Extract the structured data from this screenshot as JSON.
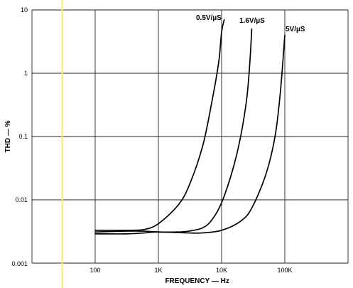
{
  "chart_data": {
    "type": "line",
    "xlabel": "FREQUENCY — Hz",
    "ylabel": "THD — %",
    "x_scale": "log",
    "y_scale": "log",
    "xlim": [
      10,
      1000000
    ],
    "ylim": [
      0.001,
      10
    ],
    "grid": true,
    "x_ticks": [
      {
        "value": 100,
        "label": "100"
      },
      {
        "value": 1000,
        "label": "1K"
      },
      {
        "value": 10000,
        "label": "10K"
      },
      {
        "value": 100000,
        "label": "100K"
      }
    ],
    "y_ticks": [
      {
        "value": 10,
        "label": "10"
      },
      {
        "value": 1,
        "label": "1"
      },
      {
        "value": 0.1,
        "label": "0.1"
      },
      {
        "value": 0.01,
        "label": "0.01"
      },
      {
        "value": 0.001,
        "label": "0.001"
      }
    ],
    "marker_line": {
      "x": 30,
      "color": "#f2ee6a"
    },
    "series": [
      {
        "name": "0.5V/µS",
        "x": [
          100,
          300,
          600,
          1000,
          2000,
          3000,
          5000,
          7000,
          9000,
          10000,
          11000
        ],
        "y": [
          0.0033,
          0.0033,
          0.0034,
          0.0042,
          0.008,
          0.016,
          0.07,
          0.35,
          1.5,
          4.5,
          7
        ]
      },
      {
        "name": "1.6V/µS",
        "x": [
          100,
          300,
          600,
          1000,
          2000,
          3000,
          5000,
          7000,
          10000,
          15000,
          20000,
          25000,
          28000,
          30000
        ],
        "y": [
          0.0031,
          0.0032,
          0.0032,
          0.0031,
          0.0031,
          0.0032,
          0.0036,
          0.0048,
          0.009,
          0.03,
          0.1,
          0.4,
          1.5,
          5
        ]
      },
      {
        "name": "5V/µS",
        "x": [
          100,
          300,
          600,
          1000,
          3000,
          5000,
          10000,
          20000,
          30000,
          50000,
          70000,
          85000,
          100000
        ],
        "y": [
          0.0029,
          0.0029,
          0.003,
          0.0031,
          0.003,
          0.003,
          0.0033,
          0.0046,
          0.0074,
          0.025,
          0.1,
          0.5,
          4
        ]
      }
    ],
    "annotations": [
      {
        "text": "0.5V/µS"
      },
      {
        "text": "1.6V/µS"
      },
      {
        "text": "5V/µS"
      }
    ]
  }
}
